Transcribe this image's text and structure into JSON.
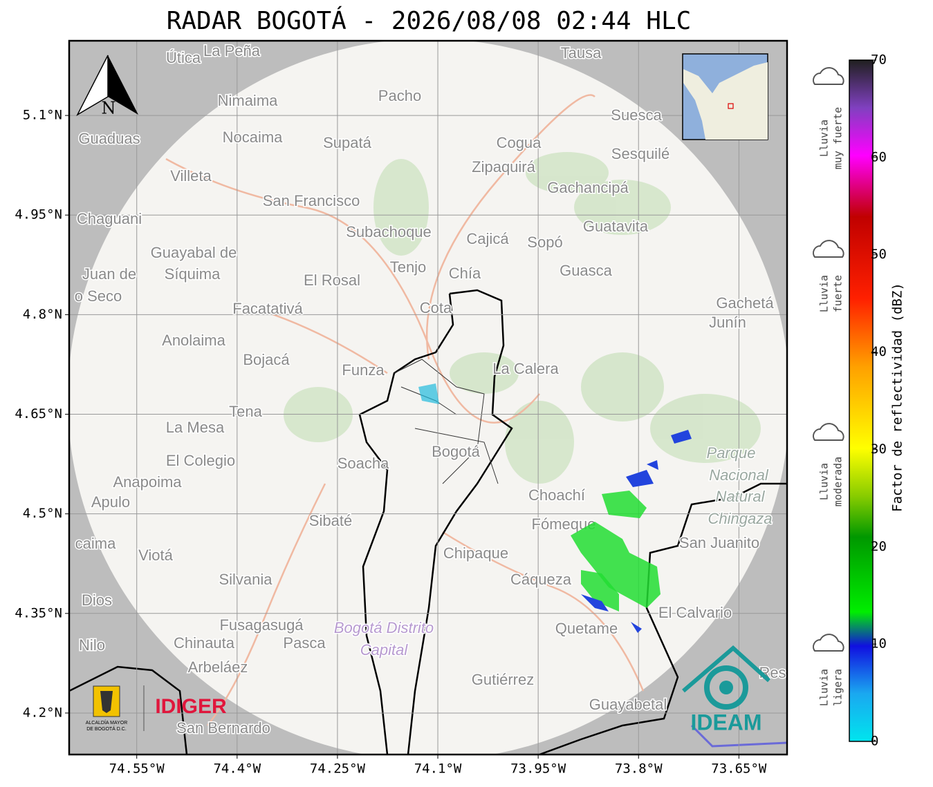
{
  "chart_data": {
    "type": "map",
    "title": "RADAR BOGOTÁ - 2026/08/08 02:44 HLC",
    "xlim": [
      -74.651,
      -73.578
    ],
    "ylim": [
      4.1375,
      5.2125
    ],
    "xticks": [
      {
        "value": -74.55,
        "label": "74.55°W"
      },
      {
        "value": -74.4,
        "label": "74.4°W"
      },
      {
        "value": -74.25,
        "label": "74.25°W"
      },
      {
        "value": -74.1,
        "label": "74.1°W"
      },
      {
        "value": -73.95,
        "label": "73.95°W"
      },
      {
        "value": -73.8,
        "label": "73.8°W"
      },
      {
        "value": -73.65,
        "label": "73.65°W"
      }
    ],
    "yticks": [
      {
        "value": 5.1,
        "label": "5.1°N"
      },
      {
        "value": 4.95,
        "label": "4.95°N"
      },
      {
        "value": 4.8,
        "label": "4.8°N"
      },
      {
        "value": 4.65,
        "label": "4.65°N"
      },
      {
        "value": 4.5,
        "label": "4.5°N"
      },
      {
        "value": 4.35,
        "label": "4.35°N"
      },
      {
        "value": 4.2,
        "label": "4.2°N"
      }
    ],
    "grid": true,
    "north_label": "N",
    "places": [
      "Útica",
      "La Peña",
      "Tausa",
      "Pacho",
      "Nimaima",
      "Guaduas",
      "Nocaima",
      "Supatá",
      "Cogua",
      "Suesca",
      "Sesquilé",
      "Zipaquirá",
      "Villeta",
      "Gachancipá",
      "San Francisco",
      "Chaguani",
      "Guatavita",
      "Subachoque",
      "Cajicá",
      "Sopó",
      "Guayabal de",
      "Síquima",
      "Juan de",
      "Tenjo",
      "Chía",
      "Guasca",
      "El Rosal",
      "o Seco",
      "Cota",
      "Gachetá",
      "Junín",
      "Facatativá",
      "Anolaima",
      "Bojacá",
      "La Calera",
      "Funza",
      "Tena",
      "La Mesa",
      "Bogotá",
      "Parque",
      "Nacional",
      "Natural",
      "Chingaza",
      "El Colegio",
      "Soacha",
      "Anapoima",
      "Apulo",
      "Choachí",
      "Sibaté",
      "Fómeque",
      "caima",
      "San Juanito",
      "Viotá",
      "Chipaque",
      "Silvania",
      "Cáqueza",
      "Dios",
      "El Calvario",
      "Fusagasugá",
      "Bogotá Distrito",
      "Quetame",
      "Nilo",
      "Chinauta",
      "Pasca",
      "Capital",
      "Arbeláez",
      "Gutiérrez",
      "Res",
      "Guayabetal",
      "San Bernardo"
    ],
    "logos": {
      "alcaldia": [
        "ALCALDÍA MAYOR",
        "DE BOGOTÁ D.C."
      ],
      "idiger": "IDIGER",
      "ideam": "IDEAM"
    },
    "colorbar": {
      "label": "Factor de reflectividad (dBZ)",
      "lim": [
        0,
        70
      ],
      "ticks": [
        0,
        10,
        20,
        30,
        40,
        50,
        60,
        70
      ],
      "intensity_labels": [
        [
          "Lluvia",
          "muy fuerte"
        ],
        [
          "Lluvia",
          "fuerte"
        ],
        [
          "Lluvia",
          "moderada"
        ],
        [
          "Lluvia",
          "ligera"
        ]
      ]
    }
  }
}
